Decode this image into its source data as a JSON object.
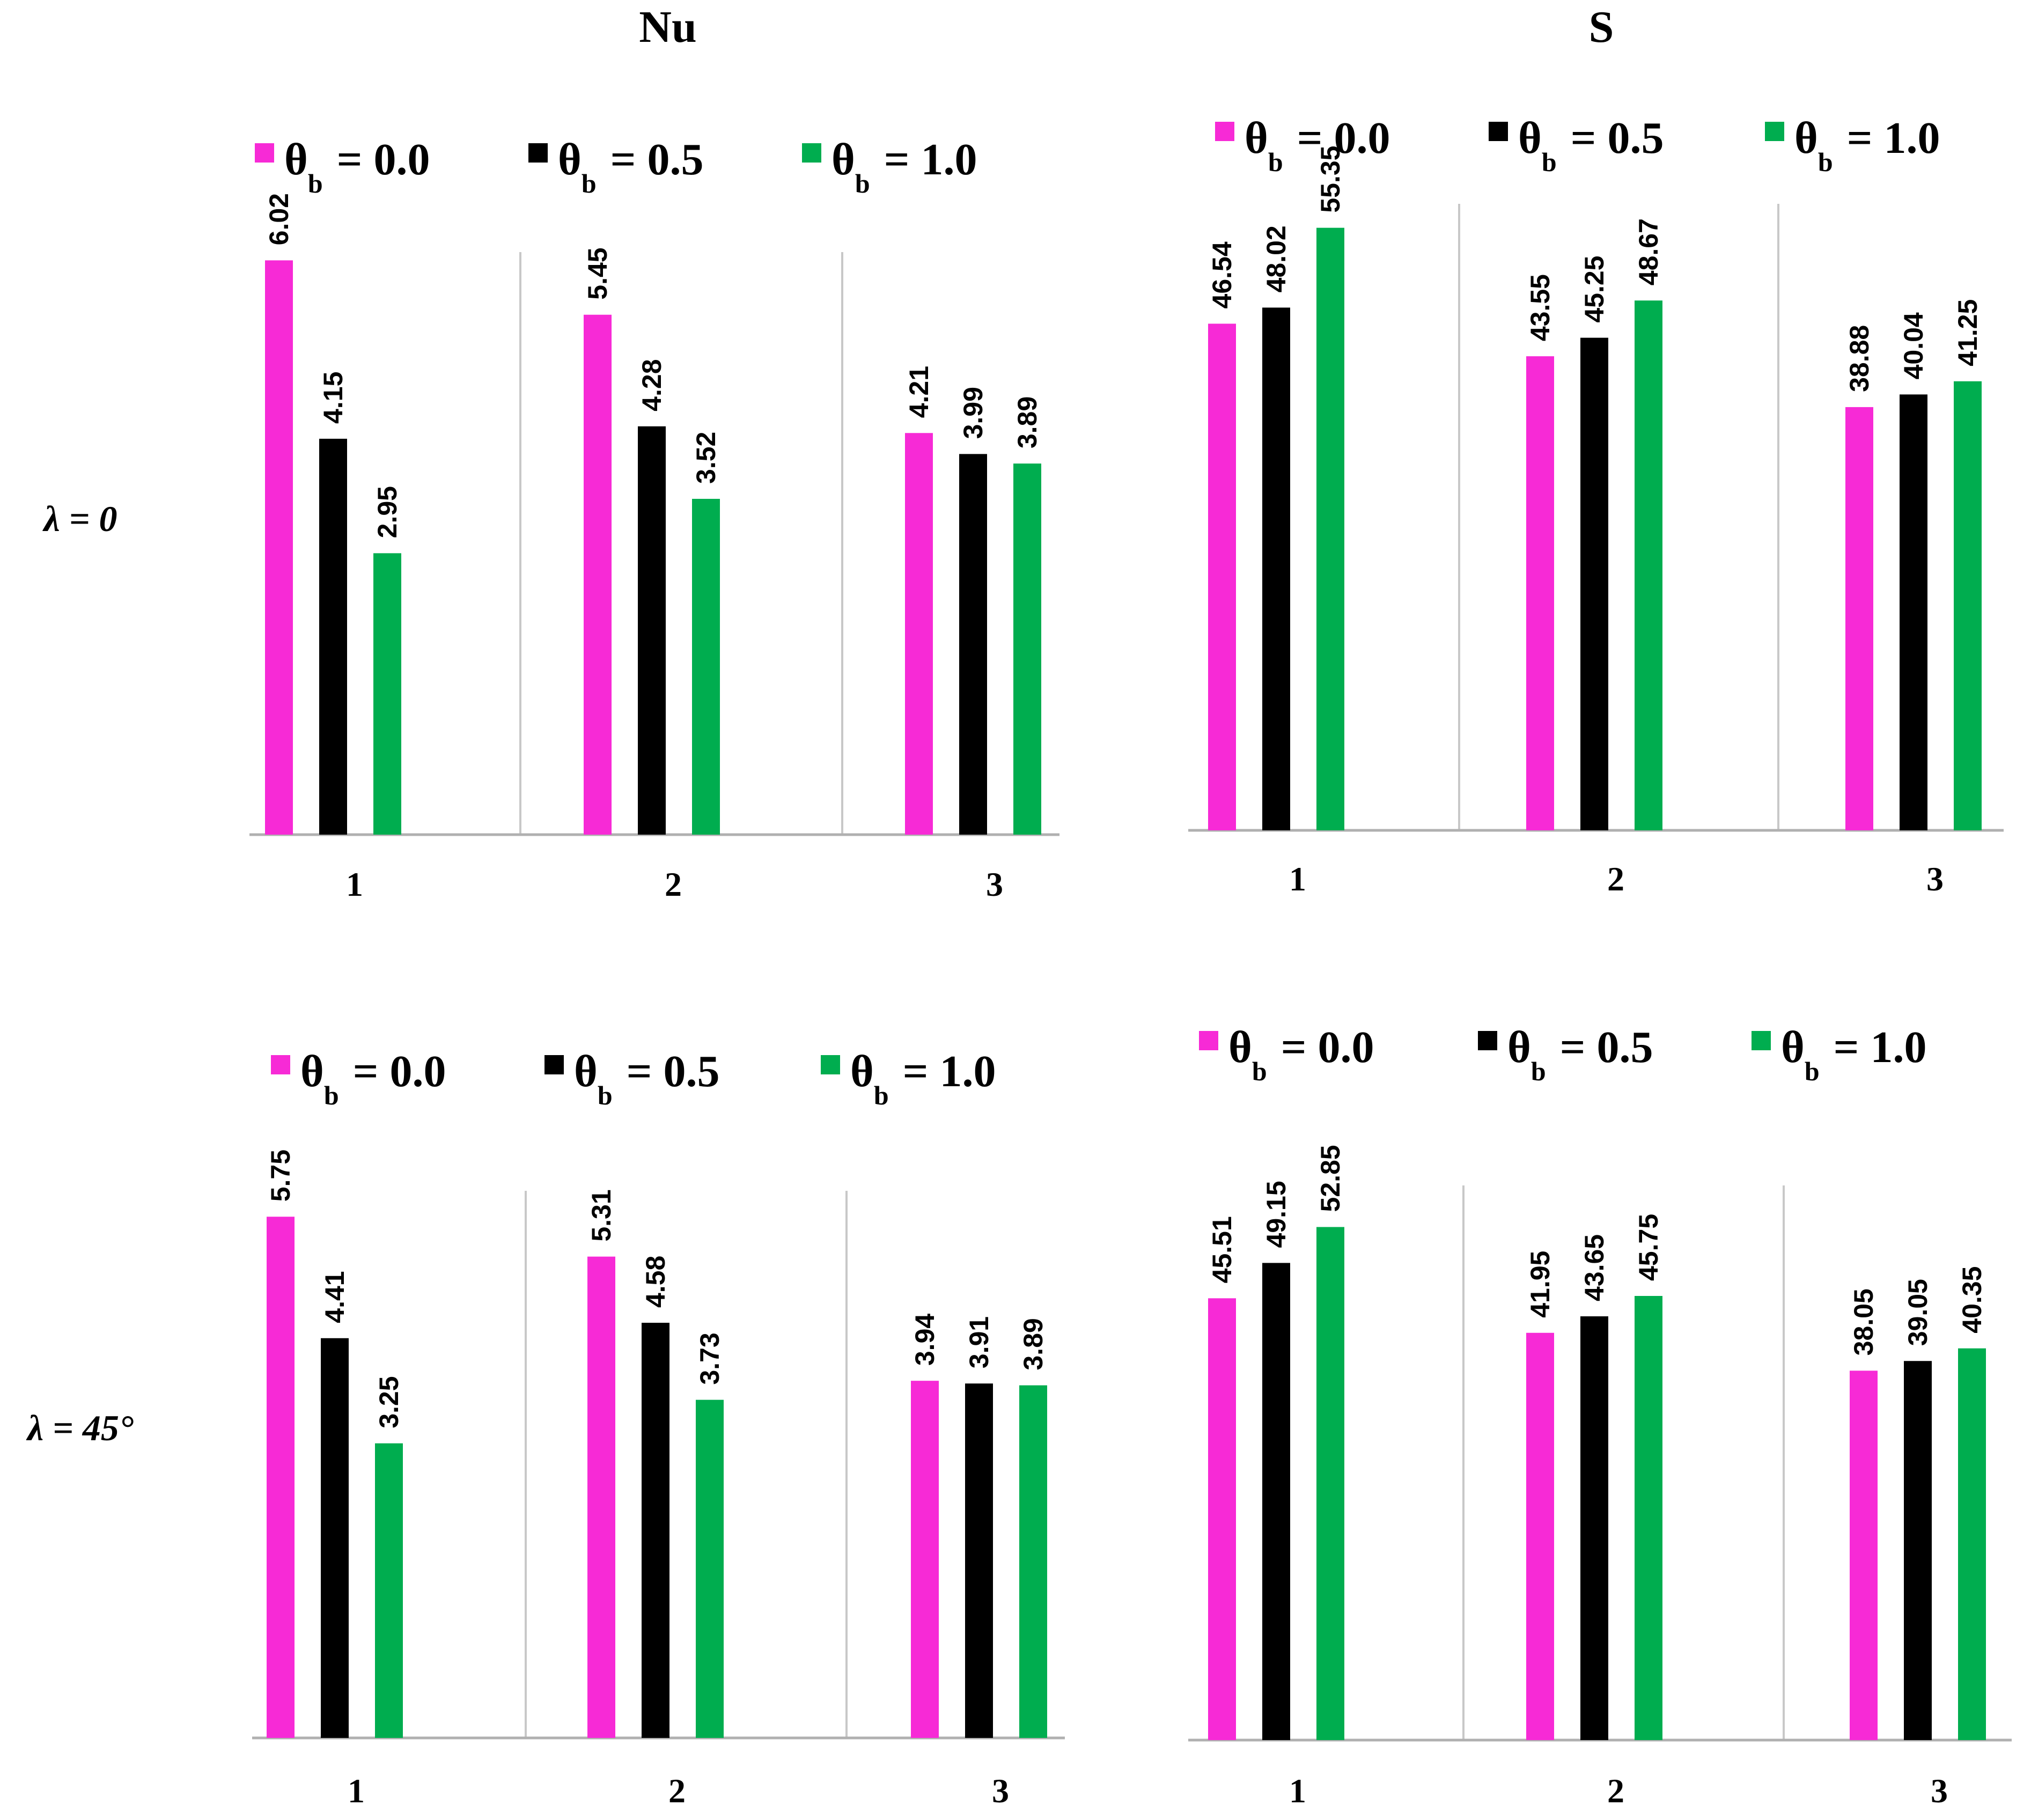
{
  "figure": {
    "column_titles": [
      "Nu",
      "S"
    ],
    "row_labels": [
      "λ = 0",
      "λ = 45°"
    ]
  },
  "colors": {
    "series": [
      "#f72ad6",
      "#000000",
      "#00ad4f"
    ],
    "axis": "#b0b0b0",
    "divider": "#c8c8c8"
  },
  "legend": {
    "entries": [
      {
        "symbol": "θ",
        "subscript": "b",
        "text": "= 0.0"
      },
      {
        "symbol": "θ",
        "subscript": "b",
        "text": "= 0.5"
      },
      {
        "symbol": "θ",
        "subscript": "b",
        "text": "= 1.0"
      }
    ]
  },
  "chart_data": [
    {
      "type": "bar",
      "column": "Nu",
      "row": "λ = 0",
      "categories": [
        "1",
        "2",
        "3"
      ],
      "series": [
        {
          "name": "θb = 0.0",
          "values": [
            6.02,
            5.45,
            4.21
          ]
        },
        {
          "name": "θb = 0.5",
          "values": [
            4.15,
            4.28,
            3.99
          ]
        },
        {
          "name": "θb = 1.0",
          "values": [
            2.95,
            3.52,
            3.89
          ]
        }
      ],
      "ylim": [
        0,
        6.5
      ],
      "legend": "top",
      "grid": false
    },
    {
      "type": "bar",
      "column": "S",
      "row": "λ = 0",
      "categories": [
        "1",
        "2",
        "3"
      ],
      "series": [
        {
          "name": "θb = 0.0",
          "values": [
            46.54,
            43.55,
            38.88
          ]
        },
        {
          "name": "θb = 0.5",
          "values": [
            48.02,
            45.25,
            40.04
          ]
        },
        {
          "name": "θb = 1.0",
          "values": [
            55.35,
            48.67,
            41.25
          ]
        }
      ],
      "ylim": [
        0,
        61
      ],
      "legend": "top",
      "grid": false
    },
    {
      "type": "bar",
      "column": "Nu",
      "row": "λ = 45°",
      "categories": [
        "1",
        "2",
        "3"
      ],
      "series": [
        {
          "name": "θb = 0.0",
          "values": [
            5.75,
            5.31,
            3.94
          ]
        },
        {
          "name": "θb = 0.5",
          "values": [
            4.41,
            4.58,
            3.91
          ]
        },
        {
          "name": "θb = 1.0",
          "values": [
            3.25,
            3.73,
            3.89
          ]
        }
      ],
      "ylim": [
        0,
        6.45
      ],
      "legend": "top",
      "grid": false
    },
    {
      "type": "bar",
      "column": "S",
      "row": "λ = 45°",
      "categories": [
        "1",
        "2",
        "3"
      ],
      "series": [
        {
          "name": "θb = 0.0",
          "values": [
            45.51,
            41.95,
            38.05
          ]
        },
        {
          "name": "θb = 0.5",
          "values": [
            49.15,
            43.65,
            39.05
          ]
        },
        {
          "name": "θb = 1.0",
          "values": [
            52.85,
            45.75,
            40.35
          ]
        }
      ],
      "ylim": [
        0,
        61
      ],
      "legend": "top",
      "grid": false
    }
  ]
}
